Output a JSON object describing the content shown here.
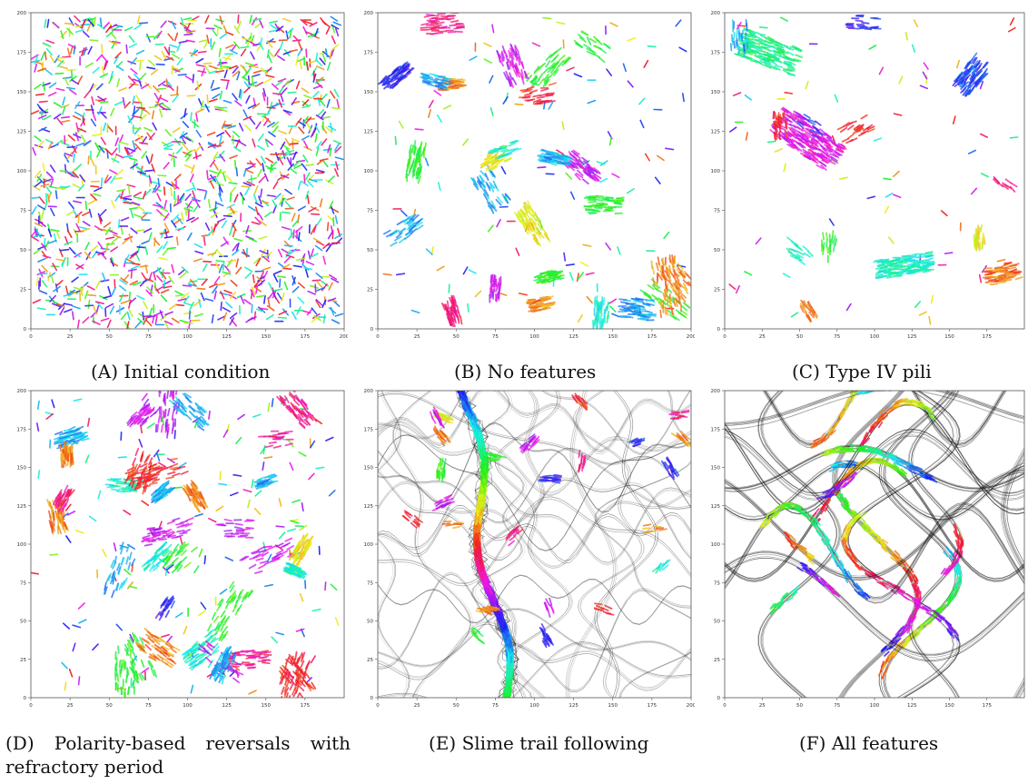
{
  "chart_data": [
    {
      "type": "scatter",
      "panel_label": "(A)",
      "caption": "Initial condition",
      "xlim": [
        0,
        200
      ],
      "ylim": [
        0,
        200
      ],
      "x_ticks": [
        0,
        25,
        50,
        75,
        100,
        125,
        150,
        175,
        200
      ],
      "y_ticks": [
        0,
        25,
        50,
        75,
        100,
        125,
        150,
        175,
        200
      ],
      "scene": "uniform"
    },
    {
      "type": "scatter",
      "panel_label": "(B)",
      "caption": "No features",
      "xlim": [
        0,
        200
      ],
      "ylim": [
        0,
        200
      ],
      "x_ticks": [
        0,
        25,
        50,
        75,
        100,
        125,
        150,
        175,
        200
      ],
      "y_ticks": [
        0,
        25,
        50,
        75,
        100,
        125,
        150,
        175,
        200
      ],
      "scene": "clusters"
    },
    {
      "type": "scatter",
      "panel_label": "(C)",
      "caption": "Type IV pili",
      "xlim": [
        0,
        200
      ],
      "ylim": [
        0,
        200
      ],
      "x_ticks": [
        0,
        25,
        50,
        75,
        100,
        125,
        150,
        175
      ],
      "y_ticks": [
        0,
        25,
        50,
        75,
        100,
        125,
        150,
        175,
        200
      ],
      "scene": "big_clusters"
    },
    {
      "type": "scatter",
      "panel_label": "(D)",
      "caption": "Polarity-based reversals with refractory period",
      "xlim": [
        0,
        200
      ],
      "ylim": [
        0,
        200
      ],
      "x_ticks": [
        0,
        25,
        50,
        75,
        100,
        125,
        150,
        175
      ],
      "y_ticks": [
        0,
        25,
        50,
        75,
        100,
        125,
        150,
        175,
        200
      ],
      "scene": "clusters_many"
    },
    {
      "type": "scatter",
      "panel_label": "(E)",
      "caption": "Slime trail following",
      "xlim": [
        0,
        200
      ],
      "ylim": [
        0,
        200
      ],
      "x_ticks": [
        0,
        25,
        50,
        75,
        100,
        125,
        150,
        175,
        200
      ],
      "y_ticks": [
        0,
        25,
        50,
        75,
        100,
        125,
        150,
        175,
        200
      ],
      "scene": "trails_stream"
    },
    {
      "type": "scatter",
      "panel_label": "(F)",
      "caption": "All features",
      "xlim": [
        0,
        200
      ],
      "ylim": [
        0,
        200
      ],
      "x_ticks": [
        0,
        25,
        50,
        75,
        100,
        125,
        150,
        175
      ],
      "y_ticks": [
        0,
        25,
        50,
        75,
        100,
        125,
        150,
        175,
        200
      ],
      "scene": "trails_network"
    }
  ]
}
